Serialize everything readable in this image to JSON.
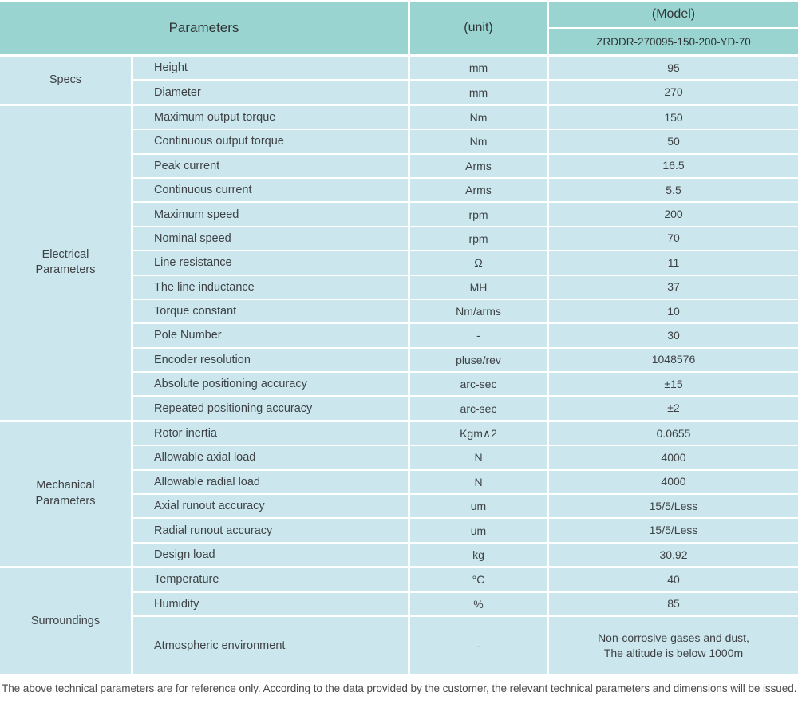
{
  "table": {
    "header": {
      "parameters_label": "Parameters",
      "unit_label": "(unit)",
      "model_label": "(Model)",
      "model_value": "ZRDDR-270095-150-200-YD-70"
    },
    "sections": [
      {
        "name": "Specs",
        "rows": [
          {
            "param": "Height",
            "unit": "mm",
            "value": "95"
          },
          {
            "param": "Diameter",
            "unit": "mm",
            "value": "270"
          }
        ]
      },
      {
        "name": "Electrical\nParameters",
        "rows": [
          {
            "param": "Maximum output torque",
            "unit": "Nm",
            "value": "150"
          },
          {
            "param": "Continuous output torque",
            "unit": "Nm",
            "value": "50"
          },
          {
            "param": "Peak current",
            "unit": "Arms",
            "value": "16.5"
          },
          {
            "param": "Continuous current",
            "unit": "Arms",
            "value": "5.5"
          },
          {
            "param": "Maximum speed",
            "unit": "rpm",
            "value": "200"
          },
          {
            "param": "Nominal speed",
            "unit": "rpm",
            "value": "70"
          },
          {
            "param": "Line resistance",
            "unit": "Ω",
            "value": "11"
          },
          {
            "param": "The line inductance",
            "unit": "MH",
            "value": "37"
          },
          {
            "param": "Torque constant",
            "unit": "Nm/arms",
            "value": "10"
          },
          {
            "param": "Pole Number",
            "unit": "-",
            "value": "30"
          },
          {
            "param": "Encoder resolution",
            "unit": "pluse/rev",
            "value": "1048576"
          },
          {
            "param": "Absolute positioning accuracy",
            "unit": "arc-sec",
            "value": "±15"
          },
          {
            "param": "Repeated positioning accuracy",
            "unit": "arc-sec",
            "value": "±2"
          }
        ]
      },
      {
        "name": "Mechanical\nParameters",
        "rows": [
          {
            "param": "Rotor inertia",
            "unit": "Kgm∧2",
            "value": "0.0655"
          },
          {
            "param": "Allowable axial load",
            "unit": "N",
            "value": "4000"
          },
          {
            "param": "Allowable radial load",
            "unit": "N",
            "value": "4000"
          },
          {
            "param": "Axial runout accuracy",
            "unit": "um",
            "value": "15/5/Less"
          },
          {
            "param": "Radial runout accuracy",
            "unit": "um",
            "value": "15/5/Less"
          },
          {
            "param": "Design load",
            "unit": "kg",
            "value": "30.92"
          }
        ]
      },
      {
        "name": "Surroundings",
        "rows": [
          {
            "param": "Temperature",
            "unit": "°C",
            "value": "40"
          },
          {
            "param": "Humidity",
            "unit": "%",
            "value": "85"
          },
          {
            "param": "Atmospheric environment",
            "unit": "-",
            "value": "Non-corrosive gases and dust,\nThe altitude is below 1000m"
          }
        ]
      }
    ]
  },
  "footer": {
    "note": "The above technical parameters are for reference only. According to the data provided by the customer, the relevant technical parameters and dimensions will be issued."
  },
  "colors": {
    "header_bg": "#9ad4d0",
    "cell_bg": "#cbe7ed",
    "text": "#3e4245",
    "separator": "#ffffff"
  }
}
